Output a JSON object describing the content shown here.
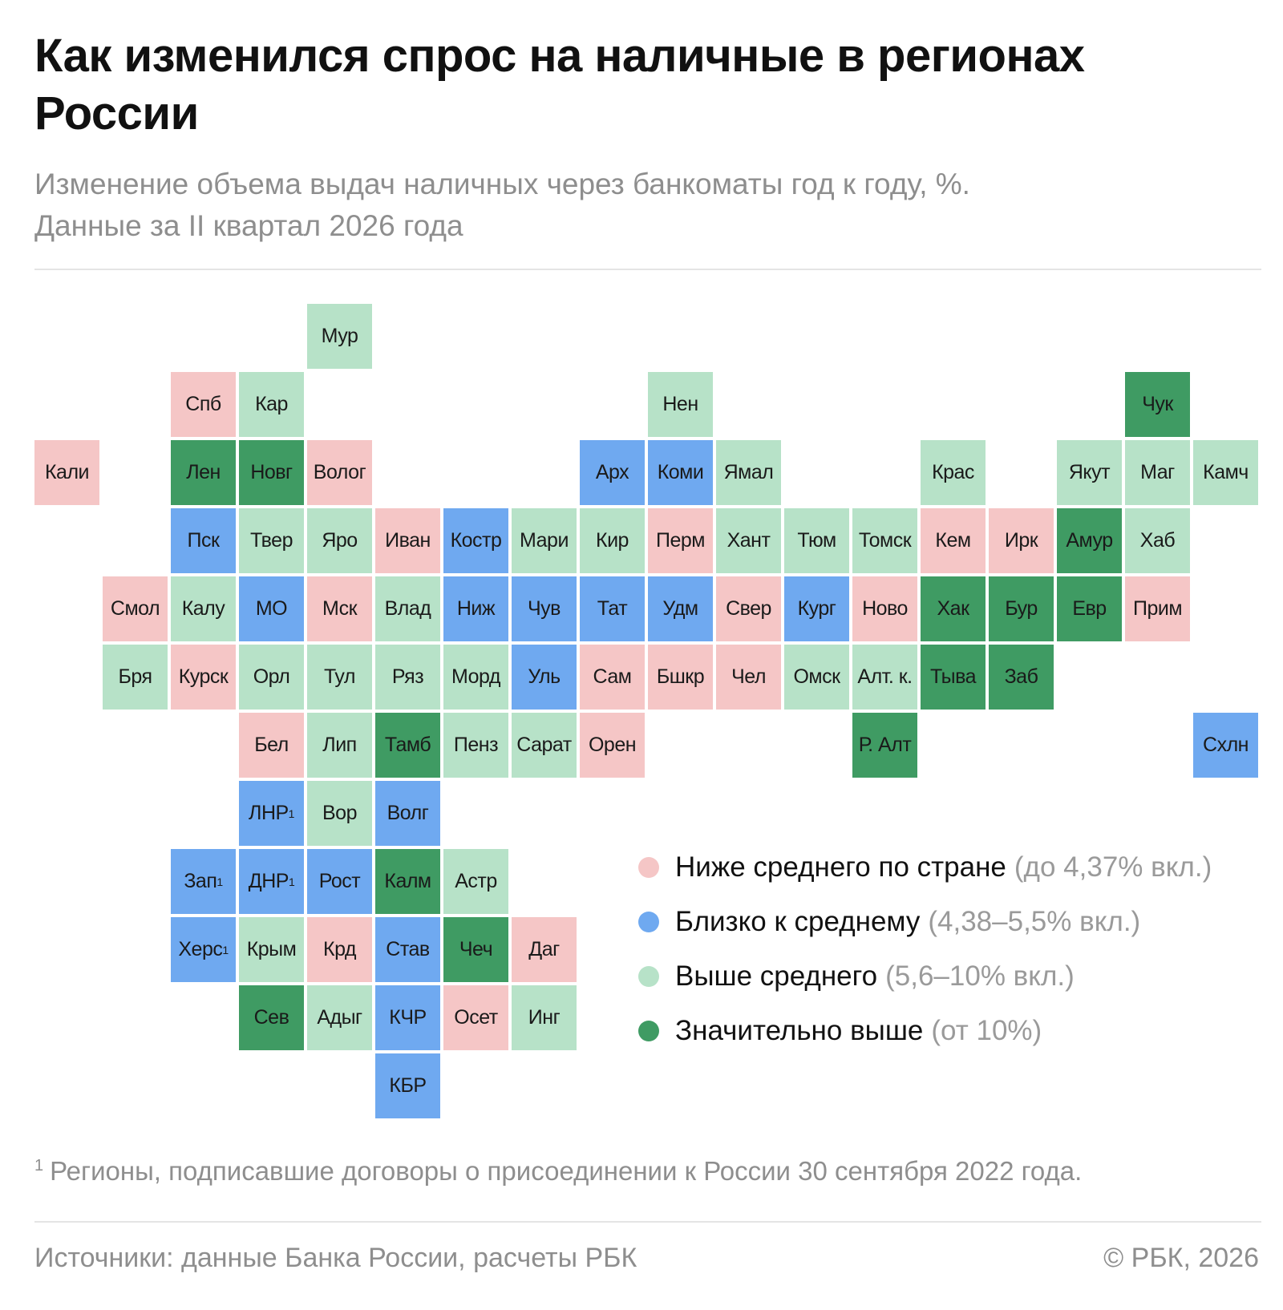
{
  "title": "Как изменился спрос на наличные в регионах России",
  "subtitle_line1": "Изменение объема выдач наличных через банкоматы год к году, %.",
  "subtitle_line2": "Данные за II квартал 2026 года",
  "colors": {
    "below": "#f5c6c6",
    "near": "#6fa9f0",
    "above": "#b7e2c8",
    "well_above": "#3f9b63"
  },
  "legend": [
    {
      "category": "below",
      "label": "Ниже среднего по стране",
      "range": "(до 4,37% вкл.)"
    },
    {
      "category": "near",
      "label": "Близко к среднему",
      "range": "(4,38–5,5% вкл.)"
    },
    {
      "category": "above",
      "label": "Выше среднего",
      "range": "(5,6–10% вкл.)"
    },
    {
      "category": "well_above",
      "label": "Значительно выше",
      "range": "(от 10%)"
    }
  ],
  "regions": [
    {
      "label": "Мур",
      "row": 0,
      "col": 4,
      "cat": "above"
    },
    {
      "label": "Спб",
      "row": 1,
      "col": 2,
      "cat": "below"
    },
    {
      "label": "Кар",
      "row": 1,
      "col": 3,
      "cat": "above"
    },
    {
      "label": "Нен",
      "row": 1,
      "col": 9,
      "cat": "above"
    },
    {
      "label": "Чук",
      "row": 1,
      "col": 16,
      "cat": "well_above"
    },
    {
      "label": "Кали",
      "row": 2,
      "col": 0,
      "cat": "below"
    },
    {
      "label": "Лен",
      "row": 2,
      "col": 2,
      "cat": "well_above"
    },
    {
      "label": "Новг",
      "row": 2,
      "col": 3,
      "cat": "well_above"
    },
    {
      "label": "Волог",
      "row": 2,
      "col": 4,
      "cat": "below"
    },
    {
      "label": "Арх",
      "row": 2,
      "col": 8,
      "cat": "near"
    },
    {
      "label": "Коми",
      "row": 2,
      "col": 9,
      "cat": "near"
    },
    {
      "label": "Ямал",
      "row": 2,
      "col": 10,
      "cat": "above"
    },
    {
      "label": "Крас",
      "row": 2,
      "col": 13,
      "cat": "above"
    },
    {
      "label": "Якут",
      "row": 2,
      "col": 15,
      "cat": "above"
    },
    {
      "label": "Маг",
      "row": 2,
      "col": 16,
      "cat": "above"
    },
    {
      "label": "Камч",
      "row": 2,
      "col": 17,
      "cat": "above"
    },
    {
      "label": "Пск",
      "row": 3,
      "col": 2,
      "cat": "near"
    },
    {
      "label": "Твер",
      "row": 3,
      "col": 3,
      "cat": "above"
    },
    {
      "label": "Яро",
      "row": 3,
      "col": 4,
      "cat": "above"
    },
    {
      "label": "Иван",
      "row": 3,
      "col": 5,
      "cat": "below"
    },
    {
      "label": "Костр",
      "row": 3,
      "col": 6,
      "cat": "near"
    },
    {
      "label": "Мари",
      "row": 3,
      "col": 7,
      "cat": "above"
    },
    {
      "label": "Кир",
      "row": 3,
      "col": 8,
      "cat": "above"
    },
    {
      "label": "Перм",
      "row": 3,
      "col": 9,
      "cat": "below"
    },
    {
      "label": "Хант",
      "row": 3,
      "col": 10,
      "cat": "above"
    },
    {
      "label": "Тюм",
      "row": 3,
      "col": 11,
      "cat": "above"
    },
    {
      "label": "Томск",
      "row": 3,
      "col": 12,
      "cat": "above"
    },
    {
      "label": "Кем",
      "row": 3,
      "col": 13,
      "cat": "below"
    },
    {
      "label": "Ирк",
      "row": 3,
      "col": 14,
      "cat": "below"
    },
    {
      "label": "Амур",
      "row": 3,
      "col": 15,
      "cat": "well_above"
    },
    {
      "label": "Хаб",
      "row": 3,
      "col": 16,
      "cat": "above"
    },
    {
      "label": "Смол",
      "row": 4,
      "col": 1,
      "cat": "below"
    },
    {
      "label": "Калу",
      "row": 4,
      "col": 2,
      "cat": "above"
    },
    {
      "label": "МО",
      "row": 4,
      "col": 3,
      "cat": "near"
    },
    {
      "label": "Мск",
      "row": 4,
      "col": 4,
      "cat": "below"
    },
    {
      "label": "Влад",
      "row": 4,
      "col": 5,
      "cat": "above"
    },
    {
      "label": "Ниж",
      "row": 4,
      "col": 6,
      "cat": "near"
    },
    {
      "label": "Чув",
      "row": 4,
      "col": 7,
      "cat": "near"
    },
    {
      "label": "Тат",
      "row": 4,
      "col": 8,
      "cat": "near"
    },
    {
      "label": "Удм",
      "row": 4,
      "col": 9,
      "cat": "near"
    },
    {
      "label": "Свер",
      "row": 4,
      "col": 10,
      "cat": "below"
    },
    {
      "label": "Кург",
      "row": 4,
      "col": 11,
      "cat": "near"
    },
    {
      "label": "Ново",
      "row": 4,
      "col": 12,
      "cat": "below"
    },
    {
      "label": "Хак",
      "row": 4,
      "col": 13,
      "cat": "well_above"
    },
    {
      "label": "Бур",
      "row": 4,
      "col": 14,
      "cat": "well_above"
    },
    {
      "label": "Евр",
      "row": 4,
      "col": 15,
      "cat": "well_above"
    },
    {
      "label": "Прим",
      "row": 4,
      "col": 16,
      "cat": "below"
    },
    {
      "label": "Бря",
      "row": 5,
      "col": 1,
      "cat": "above"
    },
    {
      "label": "Курск",
      "row": 5,
      "col": 2,
      "cat": "below"
    },
    {
      "label": "Орл",
      "row": 5,
      "col": 3,
      "cat": "above"
    },
    {
      "label": "Тул",
      "row": 5,
      "col": 4,
      "cat": "above"
    },
    {
      "label": "Ряз",
      "row": 5,
      "col": 5,
      "cat": "above"
    },
    {
      "label": "Морд",
      "row": 5,
      "col": 6,
      "cat": "above"
    },
    {
      "label": "Уль",
      "row": 5,
      "col": 7,
      "cat": "near"
    },
    {
      "label": "Сам",
      "row": 5,
      "col": 8,
      "cat": "below"
    },
    {
      "label": "Бшкр",
      "row": 5,
      "col": 9,
      "cat": "below"
    },
    {
      "label": "Чел",
      "row": 5,
      "col": 10,
      "cat": "below"
    },
    {
      "label": "Омск",
      "row": 5,
      "col": 11,
      "cat": "above"
    },
    {
      "label": "Алт. к.",
      "row": 5,
      "col": 12,
      "cat": "above"
    },
    {
      "label": "Тыва",
      "row": 5,
      "col": 13,
      "cat": "well_above"
    },
    {
      "label": "Заб",
      "row": 5,
      "col": 14,
      "cat": "well_above"
    },
    {
      "label": "Бел",
      "row": 6,
      "col": 3,
      "cat": "below"
    },
    {
      "label": "Лип",
      "row": 6,
      "col": 4,
      "cat": "above"
    },
    {
      "label": "Тамб",
      "row": 6,
      "col": 5,
      "cat": "well_above"
    },
    {
      "label": "Пенз",
      "row": 6,
      "col": 6,
      "cat": "above"
    },
    {
      "label": "Сарат",
      "row": 6,
      "col": 7,
      "cat": "above"
    },
    {
      "label": "Орен",
      "row": 6,
      "col": 8,
      "cat": "below"
    },
    {
      "label": "Р. Алт",
      "row": 6,
      "col": 12,
      "cat": "well_above"
    },
    {
      "label": "Схлн",
      "row": 6,
      "col": 17,
      "cat": "near"
    },
    {
      "label": "ЛНР",
      "sup": "1",
      "row": 7,
      "col": 3,
      "cat": "near"
    },
    {
      "label": "Вор",
      "row": 7,
      "col": 4,
      "cat": "above"
    },
    {
      "label": "Волг",
      "row": 7,
      "col": 5,
      "cat": "near"
    },
    {
      "label": "Зап",
      "sup": "1",
      "row": 8,
      "col": 2,
      "cat": "near"
    },
    {
      "label": "ДНР",
      "sup": "1",
      "row": 8,
      "col": 3,
      "cat": "near"
    },
    {
      "label": "Рост",
      "row": 8,
      "col": 4,
      "cat": "near"
    },
    {
      "label": "Калм",
      "row": 8,
      "col": 5,
      "cat": "well_above"
    },
    {
      "label": "Астр",
      "row": 8,
      "col": 6,
      "cat": "above"
    },
    {
      "label": "Херс",
      "sup": "1",
      "row": 9,
      "col": 2,
      "cat": "near"
    },
    {
      "label": "Крым",
      "row": 9,
      "col": 3,
      "cat": "above"
    },
    {
      "label": "Крд",
      "row": 9,
      "col": 4,
      "cat": "below"
    },
    {
      "label": "Став",
      "row": 9,
      "col": 5,
      "cat": "near"
    },
    {
      "label": "Чеч",
      "row": 9,
      "col": 6,
      "cat": "well_above"
    },
    {
      "label": "Даг",
      "row": 9,
      "col": 7,
      "cat": "below"
    },
    {
      "label": "Сев",
      "row": 10,
      "col": 3,
      "cat": "well_above"
    },
    {
      "label": "Адыг",
      "row": 10,
      "col": 4,
      "cat": "above"
    },
    {
      "label": "КЧР",
      "row": 10,
      "col": 5,
      "cat": "near"
    },
    {
      "label": "Осет",
      "row": 10,
      "col": 6,
      "cat": "below"
    },
    {
      "label": "Инг",
      "row": 10,
      "col": 7,
      "cat": "above"
    },
    {
      "label": "КБР",
      "row": 11,
      "col": 5,
      "cat": "near"
    }
  ],
  "footnote_mark": "1",
  "footnote_text": "Регионы, подписавшие договоры о присоединении к России 30 сентября 2022 года.",
  "source": "Источники: данные Банка России, расчеты РБК",
  "copyright": "© РБК, 2026"
}
